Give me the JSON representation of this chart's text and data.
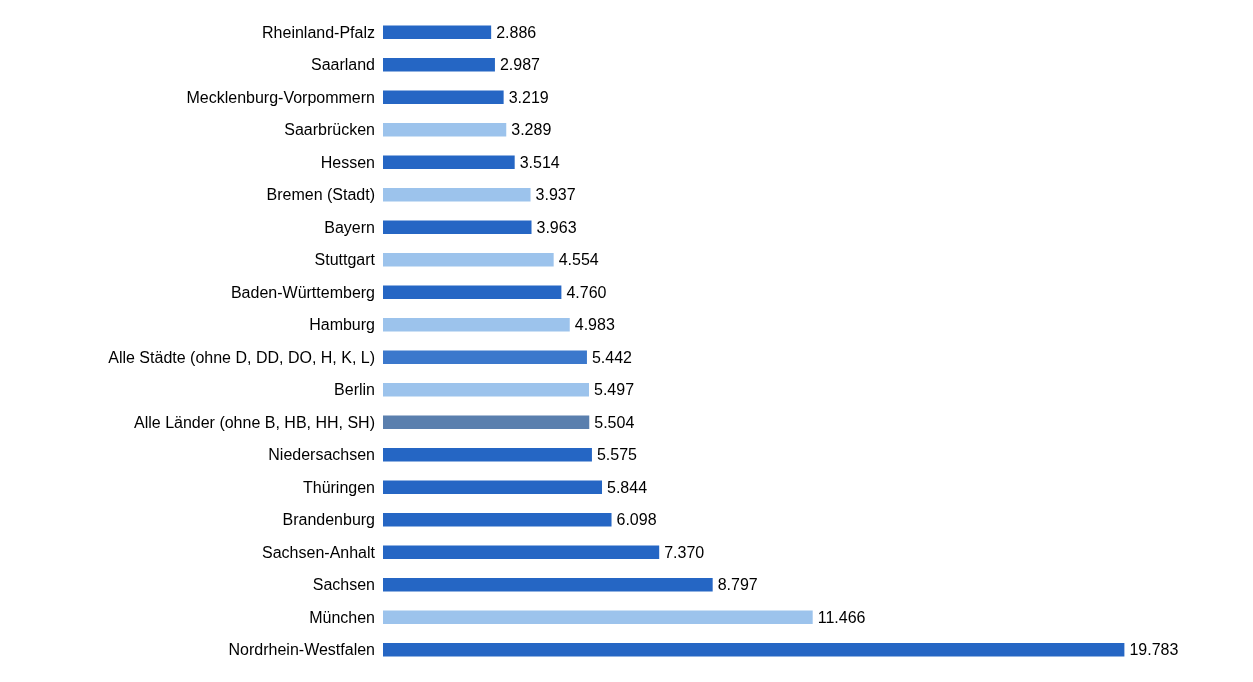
{
  "chart_data": {
    "type": "bar",
    "orientation": "horizontal",
    "categories": [
      "Rheinland-Pfalz",
      "Saarland",
      "Mecklenburg-Vorpommern",
      "Saarbrücken",
      "Hessen",
      "Bremen (Stadt)",
      "Bayern",
      "Stuttgart",
      "Baden-Württemberg",
      "Hamburg",
      "Alle Städte (ohne D, DD, DO, H, K, L)",
      "Berlin",
      "Alle Länder (ohne B, HB, HH, SH)",
      "Niedersachsen",
      "Thüringen",
      "Brandenburg",
      "Sachsen-Anhalt",
      "Sachsen",
      "München",
      "Nordrhein-Westfalen"
    ],
    "values": [
      2886,
      2987,
      3219,
      3289,
      3514,
      3937,
      3963,
      4554,
      4760,
      4983,
      5442,
      5497,
      5504,
      5575,
      5844,
      6098,
      7370,
      8797,
      11466,
      19783
    ],
    "value_labels": [
      "2.886",
      "2.987",
      "3.219",
      "3.289",
      "3.514",
      "3.937",
      "3.963",
      "4.554",
      "4.760",
      "4.983",
      "5.442",
      "5.497",
      "5.504",
      "5.575",
      "5.844",
      "6.098",
      "7.370",
      "8.797",
      "11.466",
      "19.783"
    ],
    "colors": [
      "#2566c4",
      "#2566c4",
      "#2566c4",
      "#9cc3ec",
      "#2566c4",
      "#9cc3ec",
      "#2566c4",
      "#9cc3ec",
      "#2566c4",
      "#9cc3ec",
      "#3b78cc",
      "#9cc3ec",
      "#5a7fae",
      "#2566c4",
      "#2566c4",
      "#2566c4",
      "#2566c4",
      "#2566c4",
      "#9cc3ec",
      "#2566c4"
    ],
    "tick_labels": "y"
  }
}
